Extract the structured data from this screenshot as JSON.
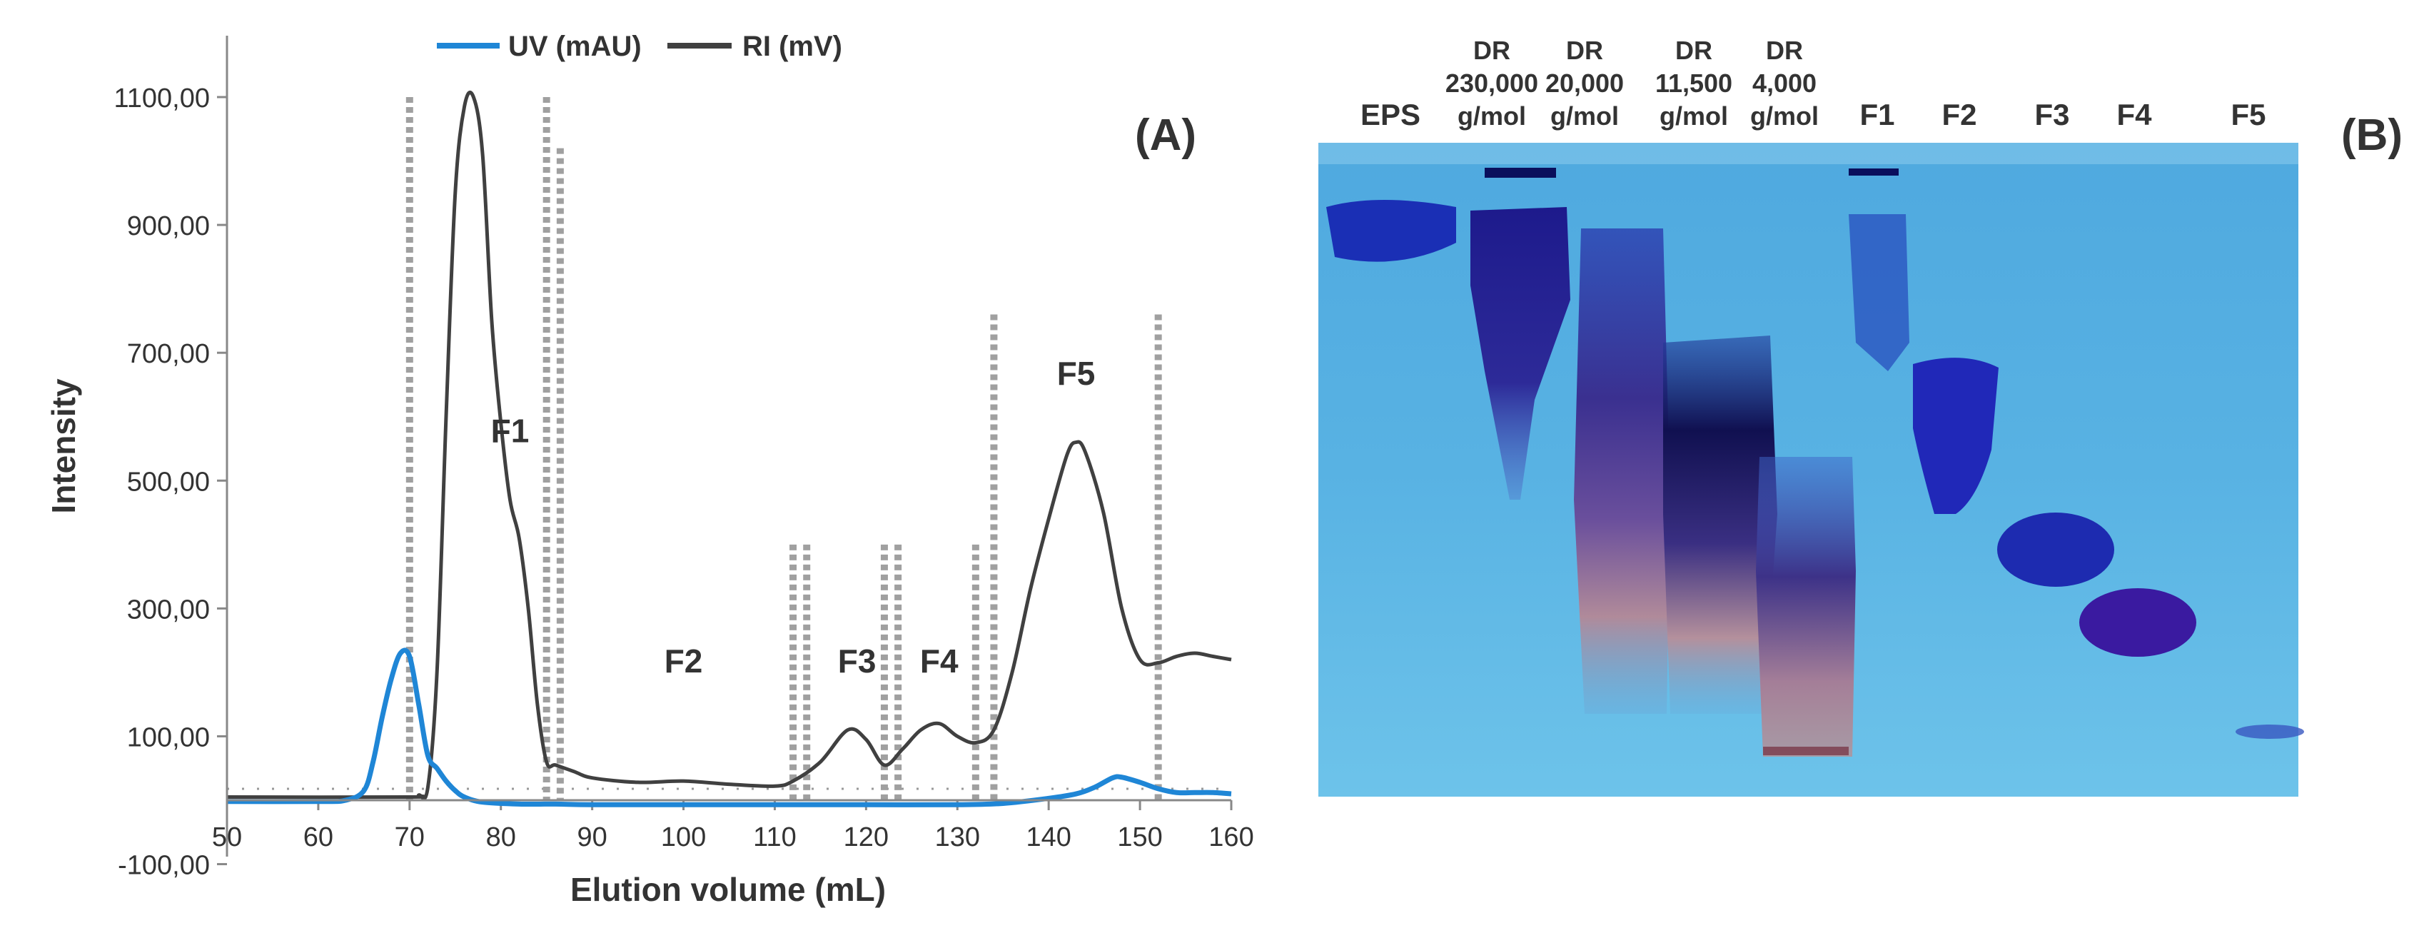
{
  "chart_data": {
    "type": "line",
    "panel_label": "(A)",
    "xlabel": "Elution volume (mL)",
    "ylabel": "Intensity",
    "xlim": [
      50,
      160
    ],
    "ylim": [
      -100,
      1200
    ],
    "x_ticks": [
      "50",
      "60",
      "70",
      "80",
      "90",
      "100",
      "110",
      "120",
      "130",
      "140",
      "150",
      "160"
    ],
    "y_ticks": [
      "-100,00",
      "100,00",
      "300,00",
      "500,00",
      "700,00",
      "900,00",
      "1100,00"
    ],
    "y_tick_values": [
      -100,
      100,
      300,
      500,
      700,
      900,
      1100
    ],
    "legend": [
      {
        "name": "UV (mAU)",
        "color": "#1f86d6"
      },
      {
        "name": "RI (mV)",
        "color": "#404040"
      }
    ],
    "series": [
      {
        "name": "UV (mAU)",
        "color": "#1f86d6",
        "x": [
          50,
          60,
          63,
          65,
          66,
          67,
          68,
          69,
          70,
          71,
          72,
          73,
          74,
          75,
          76,
          78,
          82,
          86,
          90,
          100,
          110,
          120,
          130,
          135,
          140,
          143,
          145,
          147,
          148,
          150,
          152,
          154,
          156,
          158,
          160
        ],
        "y": [
          -2,
          -2,
          0,
          15,
          60,
          130,
          190,
          230,
          225,
          150,
          70,
          50,
          30,
          15,
          5,
          -3,
          -6,
          -6,
          -7,
          -7,
          -7,
          -7,
          -7,
          -5,
          3,
          10,
          20,
          35,
          36,
          28,
          18,
          12,
          12,
          12,
          10
        ]
      },
      {
        "name": "RI (mV)",
        "color": "#404040",
        "x": [
          50,
          70,
          71,
          72,
          73,
          74,
          75,
          76,
          77,
          78,
          79,
          80,
          81,
          82,
          83,
          84,
          85,
          86,
          88,
          90,
          95,
          100,
          105,
          110,
          112,
          115,
          118,
          120,
          122,
          124,
          126,
          128,
          130,
          132,
          134,
          136,
          138,
          140,
          142,
          143,
          144,
          146,
          148,
          150,
          152,
          154,
          156,
          158,
          160
        ],
        "y": [
          5,
          5,
          8,
          20,
          200,
          600,
          950,
          1085,
          1100,
          1010,
          750,
          590,
          470,
          410,
          300,
          150,
          60,
          55,
          45,
          35,
          28,
          30,
          25,
          22,
          30,
          60,
          110,
          95,
          55,
          80,
          110,
          120,
          100,
          90,
          110,
          200,
          330,
          440,
          540,
          560,
          545,
          450,
          300,
          220,
          215,
          225,
          230,
          225,
          220
        ]
      }
    ],
    "fraction_boundaries": [
      70,
      85,
      86.5,
      112,
      113.5,
      122,
      123.5,
      132,
      134,
      152
    ],
    "annotations": [
      "F1",
      "F2",
      "F3",
      "F4",
      "F5"
    ],
    "annotation_positions": [
      [
        81,
        560
      ],
      [
        100,
        200
      ],
      [
        119,
        200
      ],
      [
        128,
        200
      ],
      [
        143,
        650
      ]
    ],
    "gel": {
      "panel_label": "(B)",
      "lanes": [
        {
          "label": "EPS"
        },
        {
          "label": "DR\n230,000\ng/mol"
        },
        {
          "label": "DR\n20,000\ng/mol"
        },
        {
          "label": "DR\n11,500\ng/mol"
        },
        {
          "label": "DR\n4,000\ng/mol"
        },
        {
          "label": "F1"
        },
        {
          "label": "F2"
        },
        {
          "label": "F3"
        },
        {
          "label": "F4"
        },
        {
          "label": "F5"
        }
      ]
    }
  }
}
